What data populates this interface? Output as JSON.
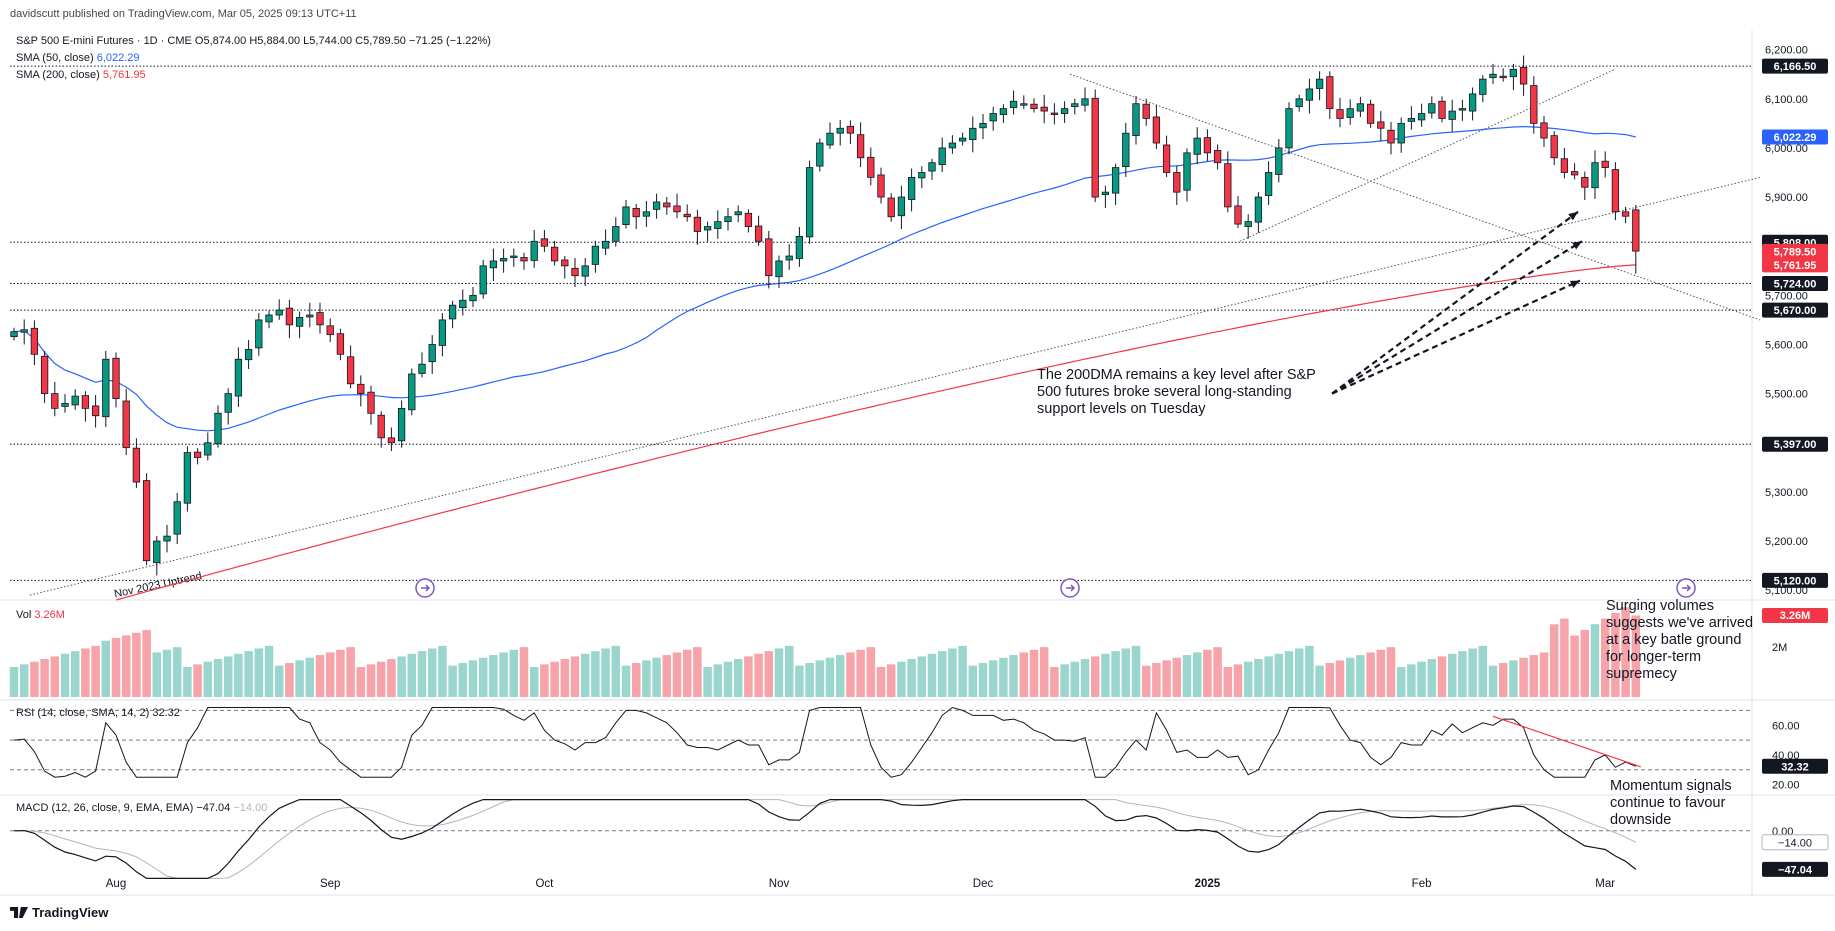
{
  "publisher": "davidscutt published on TradingView.com, Mar 05, 2025 09:13 UTC+11",
  "header": {
    "symbol": "S&P 500 E-mini Futures · 1D · CME",
    "ohlc": "O5,874.00  H5,884.00  L5,744.00  C5,789.50  −71.25 (−1.22%)",
    "sma50_label": "SMA (50, close)",
    "sma50_value": "6,022.29",
    "sma200_label": "SMA (200, close)",
    "sma200_value": "5,761.95",
    "vol_label": "Vol",
    "vol_value": "3.26M",
    "rsi_label": "RSI (14, close, SMA, 14, 2)",
    "rsi_value": "32.32",
    "macd_label": "MACD (12, 26, close, 9, EMA, EMA)",
    "macd_value": "−47.04",
    "macd_signal_value": "−14.00"
  },
  "annotations": {
    "main": "The 200DMA remains a key level after S&P 500 futures broke several long-standing support levels on Tuesday",
    "volume": "Surging volumes suggests we've arrived at a key batle ground for longer-term supremecy",
    "momentum": "Momentum signals continue to favour downside",
    "uptrend": "Nov 2023 Uptrend"
  },
  "branding": "TradingView",
  "colors": {
    "up": "#089981",
    "down": "#f23645",
    "sma50": "#2962ff",
    "sma200": "#f23645",
    "vol_up": "#9ad6cd",
    "vol_down": "#f6a3a9"
  },
  "chart_data": {
    "type": "candlestick",
    "title": "S&P 500 E-mini Futures · 1D · CME",
    "ylim": [
      5080,
      6240
    ],
    "y_ticks": [
      5100,
      5200,
      5300,
      5400,
      5500,
      5600,
      5700,
      5800,
      5900,
      6000,
      6100,
      6200
    ],
    "y_tick_labels": [
      "5,100.00",
      "5,200.00",
      "5,300.00",
      "5,400.00",
      "5,500.00",
      "5,600.00",
      "5,700.00",
      "5,800.00",
      "5,900.00",
      "6,000.00",
      "6,100.00",
      "6,200.00"
    ],
    "x_labels": [
      "Aug",
      "Sep",
      "Oct",
      "Nov",
      "Dec",
      "2025",
      "Feb",
      "Mar"
    ],
    "x_label_bars": [
      10,
      31,
      52,
      75,
      95,
      117,
      138,
      156
    ],
    "bar_count": 160,
    "closes": [
      5626,
      5630,
      5580,
      5500,
      5470,
      5480,
      5495,
      5470,
      5455,
      5570,
      5490,
      5390,
      5320,
      5160,
      5200,
      5210,
      5280,
      5380,
      5370,
      5400,
      5460,
      5500,
      5570,
      5590,
      5650,
      5660,
      5670,
      5640,
      5655,
      5660,
      5640,
      5620,
      5580,
      5520,
      5500,
      5460,
      5410,
      5400,
      5470,
      5540,
      5560,
      5600,
      5650,
      5680,
      5690,
      5700,
      5760,
      5770,
      5775,
      5780,
      5770,
      5810,
      5800,
      5770,
      5760,
      5740,
      5760,
      5800,
      5810,
      5840,
      5880,
      5860,
      5870,
      5890,
      5880,
      5870,
      5860,
      5830,
      5840,
      5850,
      5860,
      5870,
      5840,
      5810,
      5740,
      5770,
      5780,
      5820,
      5960,
      6010,
      6030,
      6040,
      6030,
      5980,
      5940,
      5900,
      5860,
      5900,
      5940,
      5950,
      5970,
      6000,
      6010,
      6020,
      6040,
      6050,
      6070,
      6080,
      6095,
      6090,
      6080,
      6075,
      6070,
      6080,
      6090,
      6100,
      5900,
      5910,
      5960,
      6030,
      6090,
      6060,
      6010,
      5950,
      5910,
      5990,
      6020,
      5990,
      5970,
      5880,
      5845,
      5850,
      5900,
      5950,
      6000,
      6080,
      6100,
      6120,
      6140,
      6080,
      6060,
      6080,
      6090,
      6050,
      6040,
      6010,
      6050,
      6060,
      6070,
      6090,
      6060,
      6075,
      6080,
      6110,
      6140,
      6150,
      6145,
      6160,
      6130,
      6050,
      6020,
      5980,
      5950,
      5945,
      5920,
      5970,
      5960,
      5870,
      5861,
      5790
    ],
    "last_ohlc": {
      "open": 5874.0,
      "high": 5884.0,
      "low": 5744.0,
      "close": 5789.5
    },
    "sma50_last": 6022.29,
    "sma200_last": 5761.95,
    "price_levels": [
      {
        "value": 6166.5,
        "label": "6,166.50"
      },
      {
        "value": 5808.0,
        "label": "5,808.00"
      },
      {
        "value": 5724.0,
        "label": "5,724.00"
      },
      {
        "value": 5670.0,
        "label": "5,670.00"
      },
      {
        "value": 5397.0,
        "label": "5,397.00"
      },
      {
        "value": 5120.0,
        "label": "5,120.00"
      }
    ],
    "price_boxes": [
      {
        "label": "6,022.29",
        "value": 6022.29,
        "color": "#2962ff"
      },
      {
        "label": "5,808.00",
        "value": 5808.0,
        "color": "#131722"
      },
      {
        "label": "5,789.50",
        "value": 5789.5,
        "color": "#f23645"
      },
      {
        "label": "5,761.95",
        "value": 5761.95,
        "color": "#f23645"
      },
      {
        "label": "5,724.00",
        "value": 5724.0,
        "color": "#131722"
      },
      {
        "label": "5,670.00",
        "value": 5670.0,
        "color": "#131722"
      },
      {
        "label": "5,397.00",
        "value": 5397.0,
        "color": "#131722"
      },
      {
        "label": "5,120.00",
        "value": 5120.0,
        "color": "#131722"
      },
      {
        "label": "6,166.50",
        "value": 6166.5,
        "color": "#131722"
      }
    ],
    "volume": {
      "last": "3.26M",
      "tick": "2M",
      "last_value_m": 3.26
    },
    "rsi": {
      "ylim": [
        15,
        75
      ],
      "ticks": [
        20,
        40,
        60
      ],
      "tick_labels": [
        "20.00",
        "40.00",
        "60.00"
      ],
      "upper": 70,
      "mid": 50,
      "lower": 30,
      "last": 32.32
    },
    "macd": {
      "ylim": [
        -60,
        40
      ],
      "zero_label": "0.00",
      "signal_last": -14.0,
      "macd_last": -47.04
    }
  }
}
